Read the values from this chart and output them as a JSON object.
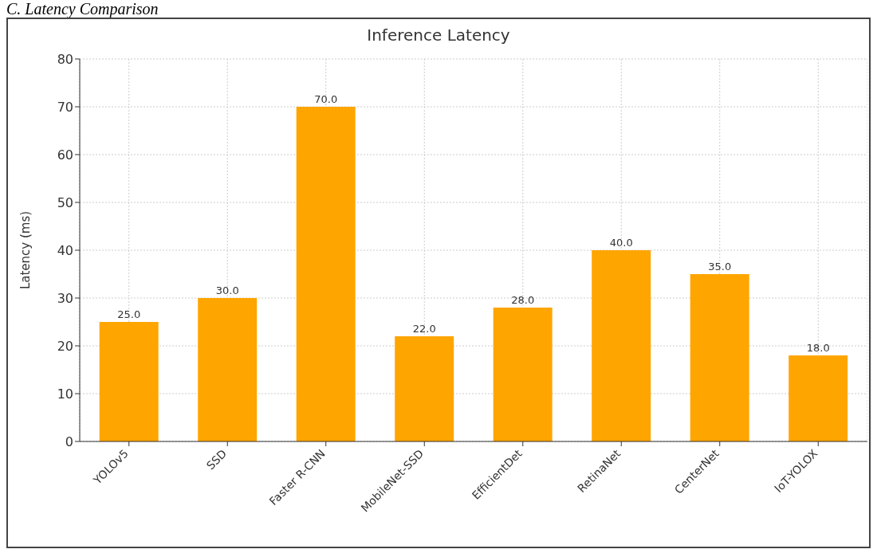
{
  "chart_data": {
    "type": "bar",
    "title": "Inference Latency",
    "ylabel": "Latency (ms)",
    "annotations": [
      "C. Latency Comparison"
    ],
    "categories": [
      "YOLOv5",
      "SSD",
      "Faster R-CNN",
      "MobileNet-SSD",
      "EfficientDet",
      "RetinaNet",
      "CenterNet",
      "IoT-YOLOX"
    ],
    "values": [
      25.0,
      30.0,
      70.0,
      22.0,
      28.0,
      40.0,
      35.0,
      18.0
    ],
    "value_labels": [
      "25.0",
      "30.0",
      "70.0",
      "22.0",
      "28.0",
      "40.0",
      "35.0",
      "18.0"
    ],
    "color": "#ffa500",
    "ylim": [
      0,
      80
    ],
    "yticks": [
      0,
      10,
      20,
      30,
      40,
      50,
      60,
      70,
      80
    ],
    "grid": true
  }
}
